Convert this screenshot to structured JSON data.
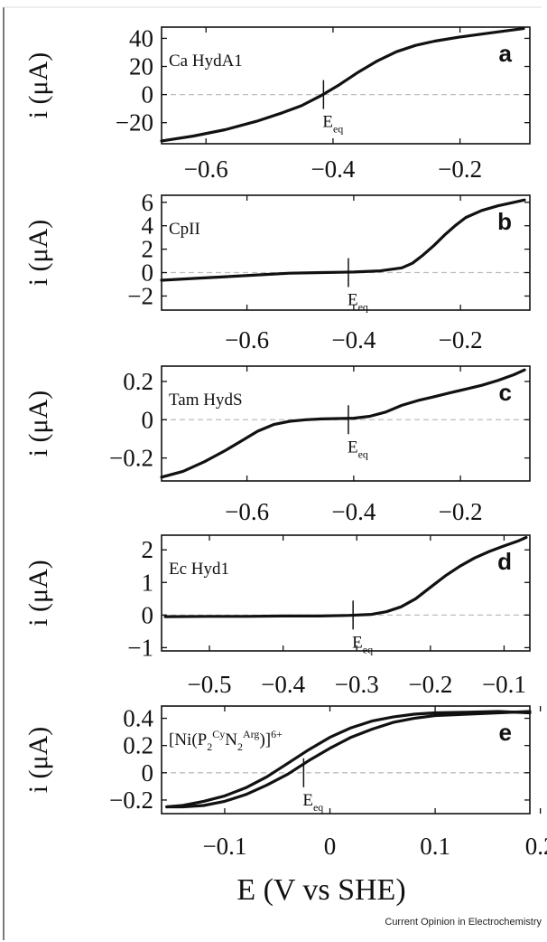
{
  "figure": {
    "xlabel": "E (V vs SHE)",
    "credit": "Current Opinion in Electrochemistry",
    "eq_label": "E",
    "eq_sub": "eq"
  },
  "chart_data": [
    {
      "type": "line",
      "panel": "a",
      "annotation": "Ca HydA1",
      "ylabel": "i (μA)",
      "xlim": [
        -0.67,
        -0.09
      ],
      "ylim": [
        -35,
        48
      ],
      "xticks": [
        -0.6,
        -0.4,
        -0.2
      ],
      "xtick_labels": [
        "−0.6",
        "−0.4",
        "−0.2"
      ],
      "yticks": [
        40,
        20,
        0,
        -20
      ],
      "ytick_labels": [
        "40",
        "20",
        "0",
        "−20"
      ],
      "e_eq": -0.415,
      "series": [
        {
          "x": [
            -0.67,
            -0.62,
            -0.57,
            -0.52,
            -0.48,
            -0.45,
            -0.42,
            -0.39,
            -0.36,
            -0.33,
            -0.3,
            -0.27,
            -0.24,
            -0.2,
            -0.15,
            -0.1
          ],
          "y": [
            -33,
            -29.5,
            -25,
            -19,
            -13,
            -8,
            -1,
            7,
            16,
            24,
            30.5,
            35,
            38,
            41,
            44,
            47
          ]
        }
      ]
    },
    {
      "type": "line",
      "panel": "b",
      "annotation": "CpII",
      "ylabel": "i (μA)",
      "xlim": [
        -0.76,
        -0.07
      ],
      "ylim": [
        -3.2,
        6.6
      ],
      "xticks": [
        -0.6,
        -0.4,
        -0.2
      ],
      "xtick_labels": [
        "−0.6",
        "−0.4",
        "−0.2"
      ],
      "yticks": [
        6,
        4,
        2,
        0,
        -2
      ],
      "ytick_labels": [
        "6",
        "4",
        "2",
        "0",
        "−2"
      ],
      "e_eq": -0.41,
      "series": [
        {
          "x": [
            -0.76,
            -0.7,
            -0.64,
            -0.58,
            -0.52,
            -0.46,
            -0.4,
            -0.35,
            -0.31,
            -0.29,
            -0.27,
            -0.25,
            -0.23,
            -0.21,
            -0.19,
            -0.16,
            -0.13,
            -0.1,
            -0.08
          ],
          "y": [
            -0.65,
            -0.5,
            -0.35,
            -0.2,
            -0.05,
            0.0,
            0.05,
            0.15,
            0.4,
            0.8,
            1.5,
            2.3,
            3.2,
            4.0,
            4.7,
            5.3,
            5.7,
            6.0,
            6.2
          ]
        }
      ]
    },
    {
      "type": "line",
      "panel": "c",
      "annotation": "Tam HydS",
      "ylabel": "i (μA)",
      "xlim": [
        -0.76,
        -0.07
      ],
      "ylim": [
        -0.32,
        0.28
      ],
      "xticks": [
        -0.6,
        -0.4,
        -0.2
      ],
      "xtick_labels": [
        "−0.6",
        "−0.4",
        "−0.2"
      ],
      "yticks": [
        0.2,
        0,
        -0.2
      ],
      "ytick_labels": [
        "0.2",
        "0",
        "−0.2"
      ],
      "e_eq": -0.41,
      "series": [
        {
          "x": [
            -0.76,
            -0.72,
            -0.68,
            -0.64,
            -0.61,
            -0.58,
            -0.55,
            -0.52,
            -0.49,
            -0.46,
            -0.43,
            -0.4,
            -0.37,
            -0.34,
            -0.31,
            -0.28,
            -0.25,
            -0.22,
            -0.19,
            -0.16,
            -0.13,
            -0.1,
            -0.08
          ],
          "y": [
            -0.3,
            -0.27,
            -0.22,
            -0.16,
            -0.11,
            -0.06,
            -0.025,
            -0.008,
            0.0,
            0.004,
            0.006,
            0.008,
            0.018,
            0.04,
            0.075,
            0.1,
            0.12,
            0.14,
            0.16,
            0.18,
            0.205,
            0.235,
            0.26
          ]
        }
      ]
    },
    {
      "type": "line",
      "panel": "d",
      "annotation": "Ec Hyd1",
      "ylabel": "i (μA)",
      "xlim": [
        -0.565,
        -0.065
      ],
      "ylim": [
        -1.1,
        2.45
      ],
      "xticks": [
        -0.5,
        -0.4,
        -0.3,
        -0.2,
        -0.1
      ],
      "xtick_labels": [
        "−0.5",
        "−0.4",
        "−0.3",
        "−0.2",
        "−0.1"
      ],
      "yticks": [
        2,
        1,
        0,
        -1
      ],
      "ytick_labels": [
        "2",
        "1",
        "0",
        "−1"
      ],
      "e_eq": -0.305,
      "series": [
        {
          "x": [
            -0.56,
            -0.5,
            -0.45,
            -0.4,
            -0.35,
            -0.31,
            -0.28,
            -0.26,
            -0.24,
            -0.22,
            -0.2,
            -0.18,
            -0.16,
            -0.14,
            -0.12,
            -0.1,
            -0.08,
            -0.07
          ],
          "y": [
            -0.05,
            -0.04,
            -0.04,
            -0.03,
            -0.03,
            -0.01,
            0.02,
            0.1,
            0.25,
            0.5,
            0.85,
            1.2,
            1.5,
            1.75,
            1.95,
            2.12,
            2.28,
            2.38
          ]
        }
      ]
    },
    {
      "type": "line",
      "panel": "e",
      "annotation": "[Ni(P2CyN2Arg)]6+",
      "annotation_parts": {
        "open": "[Ni(P",
        "p_sub": "2",
        "cy": "Cy",
        "n": "N",
        "n_sub": "2",
        "arg": "Arg",
        "close": ")]",
        "charge": "6+"
      },
      "ylabel": "i (μA)",
      "xlim": [
        -0.16,
        0.19
      ],
      "ylim": [
        -0.3,
        0.49
      ],
      "xticks": [
        -0.1,
        0,
        0.1,
        0.2
      ],
      "xtick_labels": [
        "−0.1",
        "0",
        "0.1",
        "0.2"
      ],
      "yticks": [
        0.4,
        0.2,
        0,
        -0.2
      ],
      "ytick_labels": [
        "0.4",
        "0.2",
        "0",
        "−0.2"
      ],
      "e_eq": -0.025,
      "series": [
        {
          "x": [
            -0.155,
            -0.14,
            -0.12,
            -0.1,
            -0.08,
            -0.06,
            -0.04,
            -0.02,
            0.0,
            0.02,
            0.04,
            0.06,
            0.08,
            0.1,
            0.13,
            0.16,
            0.19
          ],
          "y": [
            -0.25,
            -0.25,
            -0.24,
            -0.21,
            -0.16,
            -0.09,
            -0.01,
            0.09,
            0.18,
            0.26,
            0.32,
            0.37,
            0.4,
            0.42,
            0.43,
            0.44,
            0.45
          ]
        },
        {
          "x": [
            0.19,
            0.16,
            0.13,
            0.1,
            0.08,
            0.06,
            0.04,
            0.02,
            0.0,
            -0.02,
            -0.04,
            -0.06,
            -0.08,
            -0.1,
            -0.12,
            -0.14,
            -0.155
          ],
          "y": [
            0.44,
            0.45,
            0.445,
            0.44,
            0.43,
            0.41,
            0.38,
            0.33,
            0.26,
            0.17,
            0.07,
            -0.03,
            -0.11,
            -0.17,
            -0.21,
            -0.24,
            -0.25
          ]
        }
      ]
    }
  ]
}
